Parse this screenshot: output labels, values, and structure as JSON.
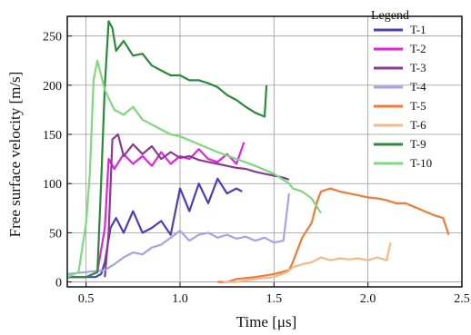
{
  "chart_data": {
    "type": "line",
    "xlabel": "Time [μs]",
    "ylabel": "Free surface velocity [m/s]",
    "xlim": [
      0.4,
      2.5
    ],
    "ylim": [
      -5,
      270
    ],
    "x_ticks": [
      "0.5",
      "1.0",
      "1.5",
      "2.0",
      "2.5"
    ],
    "x_tick_values": [
      0.5,
      1.0,
      1.5,
      2.0,
      2.5
    ],
    "y_ticks": [
      "0",
      "50",
      "100",
      "150",
      "200",
      "250"
    ],
    "y_tick_values": [
      0,
      50,
      100,
      150,
      200,
      250
    ],
    "grid": true,
    "legend_title": "Legend",
    "legend_position": "top-right",
    "series": [
      {
        "name": "T-1",
        "color": "#4b3fb5",
        "x": [
          0.4,
          0.55,
          0.58,
          0.6,
          0.63,
          0.66,
          0.7,
          0.75,
          0.8,
          0.85,
          0.9,
          0.95,
          1.0,
          1.05,
          1.1,
          1.15,
          1.2,
          1.25,
          1.3,
          1.33
        ],
        "y": [
          5,
          5,
          8,
          20,
          55,
          65,
          50,
          72,
          50,
          55,
          62,
          48,
          95,
          72,
          100,
          80,
          105,
          90,
          95,
          92
        ]
      },
      {
        "name": "T-2",
        "color": "#e81fe0",
        "x": [
          0.4,
          0.5,
          0.56,
          0.6,
          0.62,
          0.65,
          0.7,
          0.75,
          0.8,
          0.85,
          0.9,
          0.95,
          1.0,
          1.05,
          1.1,
          1.15,
          1.2,
          1.25,
          1.3,
          1.34
        ],
        "y": [
          5,
          5,
          10,
          55,
          125,
          115,
          130,
          120,
          128,
          118,
          132,
          120,
          128,
          125,
          135,
          125,
          122,
          130,
          120,
          142
        ]
      },
      {
        "name": "T-3",
        "color": "#8b3a8f",
        "x": [
          0.6,
          0.62,
          0.64,
          0.67,
          0.7,
          0.75,
          0.8,
          0.85,
          0.9,
          0.95,
          1.0,
          1.05,
          1.1,
          1.15,
          1.2,
          1.25,
          1.3,
          1.35,
          1.4,
          1.45,
          1.5,
          1.55,
          1.58
        ],
        "y": [
          5,
          50,
          145,
          150,
          128,
          140,
          130,
          138,
          125,
          132,
          126,
          128,
          124,
          122,
          120,
          118,
          116,
          115,
          112,
          110,
          108,
          106,
          104
        ]
      },
      {
        "name": "T-4",
        "color": "#a3a3e8",
        "x": [
          0.4,
          0.5,
          0.6,
          0.65,
          0.7,
          0.75,
          0.8,
          0.85,
          0.9,
          0.95,
          1.0,
          1.05,
          1.1,
          1.15,
          1.2,
          1.25,
          1.3,
          1.35,
          1.4,
          1.45,
          1.5,
          1.55,
          1.58
        ],
        "y": [
          8,
          10,
          12,
          18,
          25,
          30,
          28,
          35,
          38,
          45,
          52,
          42,
          48,
          50,
          45,
          48,
          44,
          46,
          42,
          45,
          40,
          42,
          90
        ]
      },
      {
        "name": "T-5",
        "color": "#f07a36",
        "x": [
          1.2,
          1.25,
          1.3,
          1.4,
          1.5,
          1.58,
          1.6,
          1.65,
          1.7,
          1.73,
          1.75,
          1.8,
          1.85,
          1.9,
          1.95,
          2.0,
          2.05,
          2.1,
          2.15,
          2.2,
          2.25,
          2.3,
          2.35,
          2.4,
          2.43
        ],
        "y": [
          0,
          0,
          3,
          5,
          8,
          12,
          20,
          45,
          60,
          82,
          92,
          95,
          92,
          90,
          88,
          86,
          85,
          83,
          80,
          80,
          76,
          72,
          68,
          65,
          48
        ]
      },
      {
        "name": "T-6",
        "color": "#f6b888",
        "x": [
          1.23,
          1.3,
          1.4,
          1.5,
          1.57,
          1.6,
          1.65,
          1.7,
          1.75,
          1.8,
          1.85,
          1.9,
          1.95,
          2.0,
          2.05,
          2.1,
          2.12
        ],
        "y": [
          0,
          0,
          3,
          5,
          10,
          15,
          18,
          20,
          25,
          22,
          24,
          23,
          24,
          22,
          25,
          22,
          40
        ]
      },
      {
        "name": "T-9",
        "color": "#2a8a3a",
        "x": [
          0.4,
          0.5,
          0.56,
          0.58,
          0.6,
          0.62,
          0.64,
          0.66,
          0.7,
          0.75,
          0.8,
          0.85,
          0.9,
          0.95,
          1.0,
          1.05,
          1.1,
          1.15,
          1.2,
          1.25,
          1.3,
          1.35,
          1.4,
          1.45,
          1.46
        ],
        "y": [
          5,
          5,
          10,
          100,
          200,
          265,
          258,
          235,
          245,
          230,
          232,
          220,
          215,
          210,
          210,
          205,
          205,
          202,
          198,
          190,
          185,
          178,
          172,
          168,
          200
        ]
      },
      {
        "name": "T-10",
        "color": "#7ed87e",
        "x": [
          0.4,
          0.46,
          0.5,
          0.52,
          0.54,
          0.56,
          0.6,
          0.65,
          0.7,
          0.75,
          0.8,
          0.85,
          0.9,
          0.95,
          1.0,
          1.1,
          1.2,
          1.3,
          1.4,
          1.5,
          1.58,
          1.6,
          1.65,
          1.7,
          1.75
        ],
        "y": [
          5,
          10,
          60,
          110,
          205,
          225,
          195,
          175,
          170,
          178,
          165,
          160,
          155,
          150,
          148,
          140,
          132,
          125,
          118,
          110,
          100,
          95,
          92,
          85,
          70
        ]
      }
    ]
  }
}
